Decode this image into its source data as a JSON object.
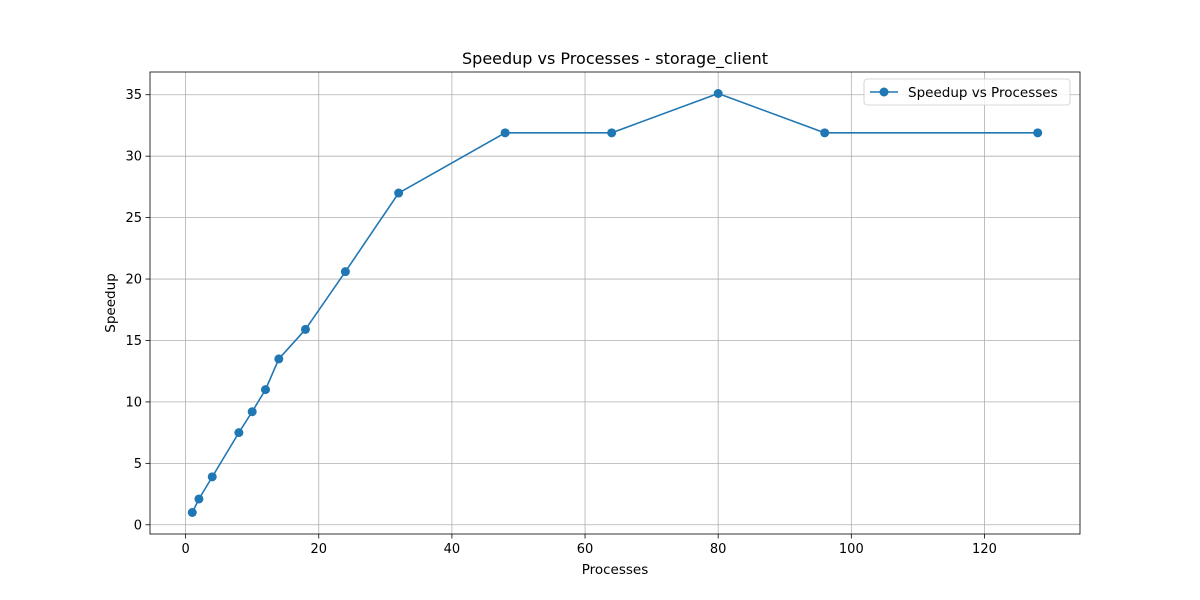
{
  "chart_data": {
    "type": "line",
    "title": "Speedup vs Processes  - storage_client",
    "xlabel": "Processes",
    "ylabel": "Speedup",
    "xlim": [
      -5.35,
      134.35
    ],
    "ylim": [
      -0.75,
      36.85
    ],
    "xticks": [
      0,
      20,
      40,
      60,
      80,
      100,
      120
    ],
    "yticks": [
      0,
      5,
      10,
      15,
      20,
      25,
      30,
      35
    ],
    "grid": true,
    "legend_position": "top-right",
    "series": [
      {
        "name": "Speedup vs Processes",
        "color": "#1f77b4",
        "marker": "circle",
        "x": [
          1,
          2,
          4,
          8,
          10,
          12,
          14,
          18,
          24,
          32,
          48,
          64,
          80,
          96,
          128
        ],
        "y": [
          1.0,
          2.1,
          3.9,
          7.5,
          9.2,
          11.0,
          13.5,
          15.9,
          20.6,
          27.0,
          31.9,
          31.9,
          35.1,
          31.9,
          31.9
        ]
      }
    ]
  }
}
